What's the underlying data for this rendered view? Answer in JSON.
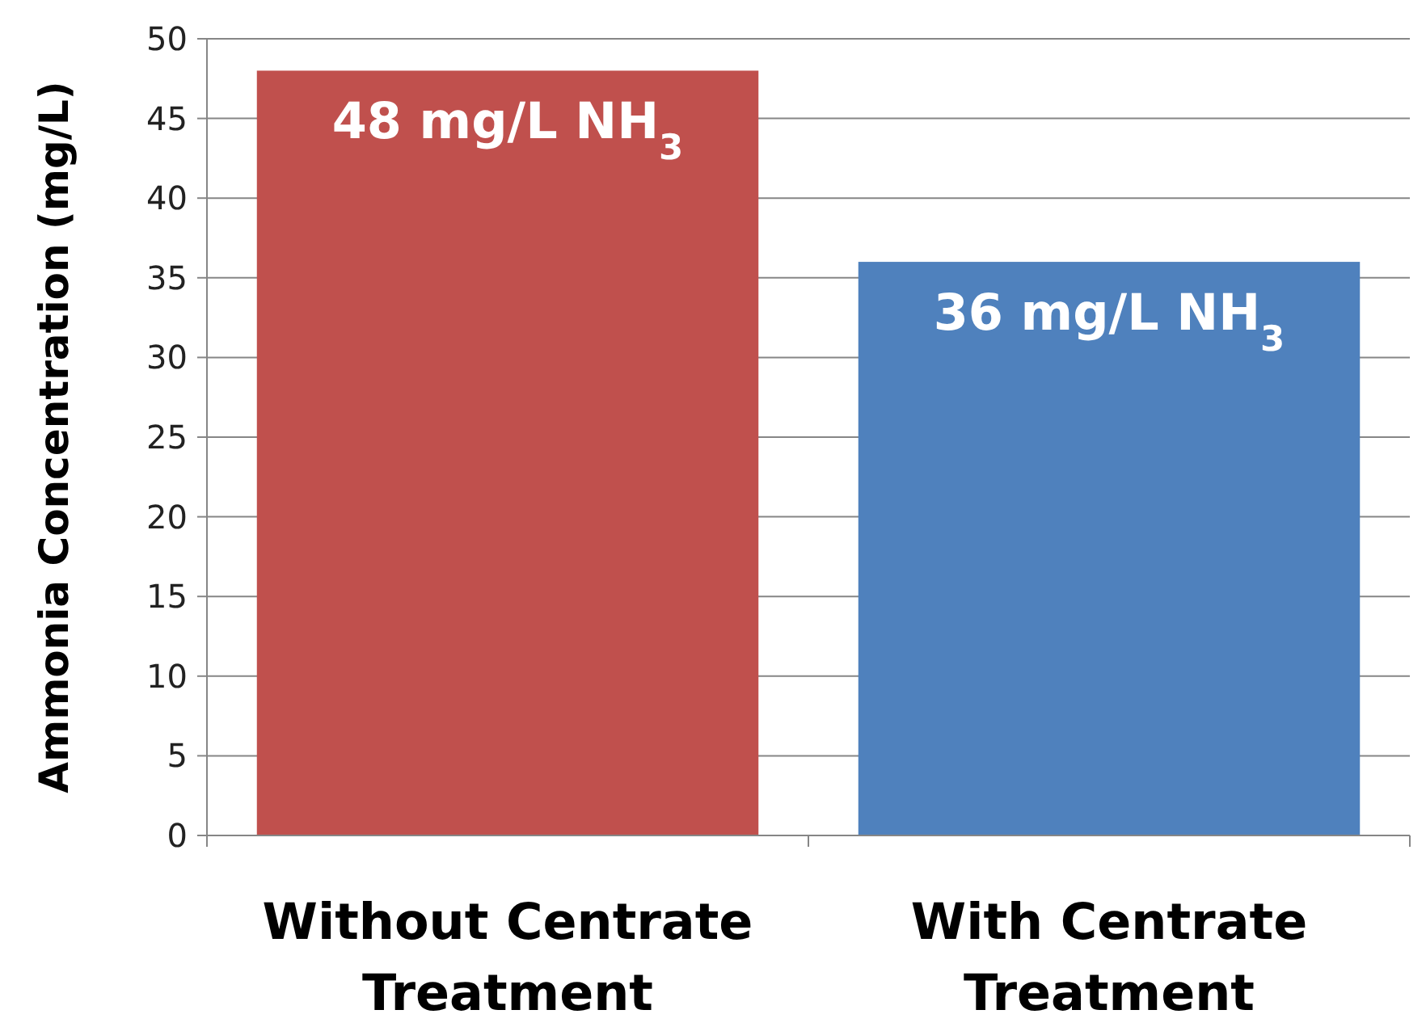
{
  "chart_data": {
    "type": "bar",
    "ylabel": "Ammonia Concentration (mg/L)",
    "categories": [
      "Without Centrate Treatment",
      "With Centrate Treatment"
    ],
    "values": [
      48,
      36
    ],
    "colors": [
      "#c0504d",
      "#4f81bd"
    ],
    "value_labels": [
      "48 mg/L NH$_{3}$",
      "36 mg/L NH$_{3}$"
    ],
    "ylim": [
      0,
      50
    ],
    "yticks": [
      0,
      5,
      10,
      15,
      20,
      25,
      30,
      35,
      40,
      45,
      50
    ],
    "grid": "y"
  }
}
